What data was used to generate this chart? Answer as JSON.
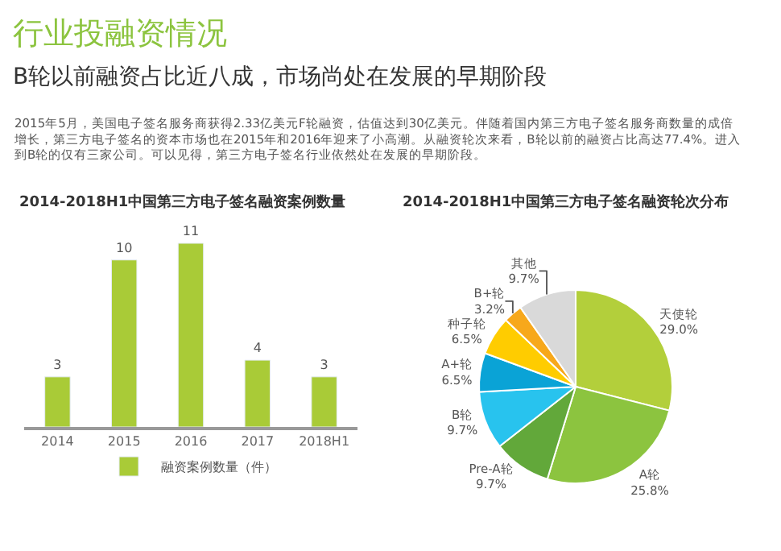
{
  "chart_data": [
    {
      "type": "bar",
      "title": "2014-2018H1中国第三方电子签名融资案例数量",
      "categories": [
        "2014",
        "2015",
        "2016",
        "2017",
        "2018H1"
      ],
      "series": [
        {
          "name": "融资案例数量（件）",
          "color": "#a9cb37",
          "values": [
            3,
            10,
            11,
            4,
            3
          ]
        }
      ],
      "data_labels": true,
      "legend": "bottom",
      "annotations": [
        "行业投融资情况",
        "B轮以前融资占比近八成，市场尚处在发展的早期阶段",
        "2015年5月，美国电子签名服务商获得2.33亿美元F轮融资，估值达到30亿美元。伴随着国内第三方电子签名服务商数量的成倍增长，第三方电子签名的资本市场也在2015年和2016年迎来了小高潮。从融资轮次来看，B轮以前的融资占比高达77.4%。进入到B轮的仅有三家公司。可以见得，第三方电子签名行业依然处在发展的早期阶段。"
      ]
    },
    {
      "type": "pie",
      "title": "2014-2018H1中国第三方电子签名融资轮次分布",
      "categories": [
        "天使轮",
        "A轮",
        "Pre-A轮",
        "B轮",
        "A+轮",
        "种子轮",
        "B+轮",
        "其他"
      ],
      "values": [
        29.0,
        25.8,
        9.7,
        9.7,
        6.5,
        6.5,
        3.2,
        9.7
      ],
      "value_labels": [
        "29.0%",
        "25.8%",
        "9.7%",
        "9.7%",
        "6.5%",
        "6.5%",
        "3.2%",
        "9.7%"
      ],
      "colors": [
        "#b3cf3b",
        "#8cc43f",
        "#62a83a",
        "#28c3ee",
        "#0aa3d6",
        "#ffcc00",
        "#f7a81b",
        "#d9d9d9"
      ]
    }
  ]
}
